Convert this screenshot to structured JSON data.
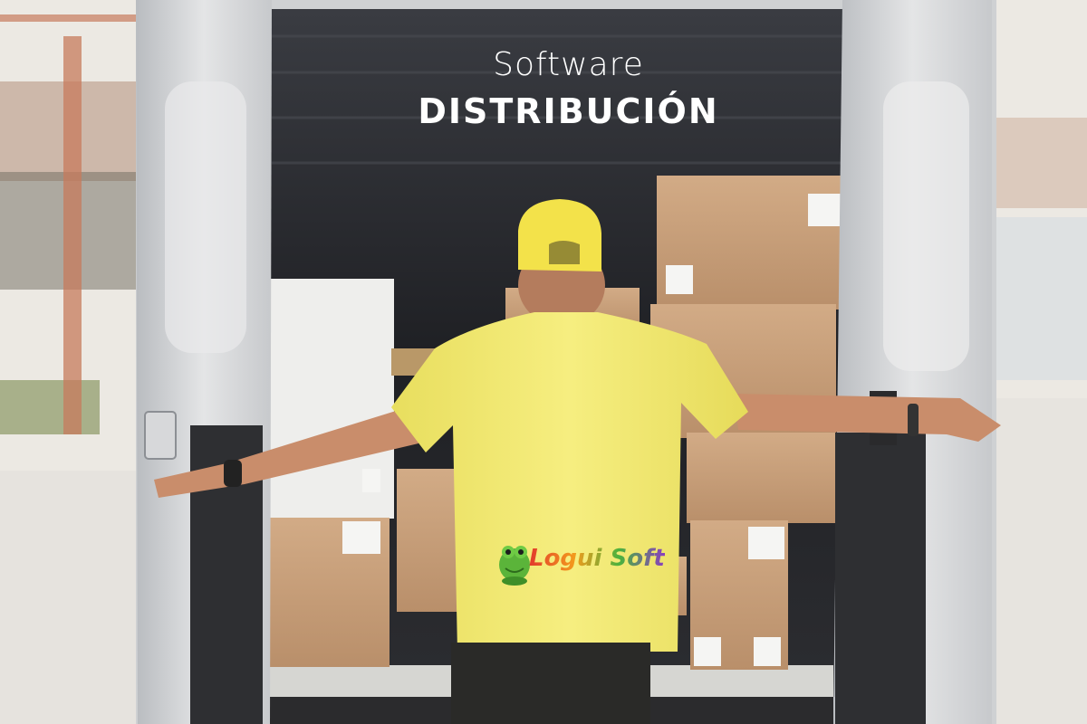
{
  "headline": {
    "line1": "Software",
    "line2": "DISTRIBUCIÓN"
  },
  "logo": {
    "text": "Logui Soft",
    "icon": "frog-mascot-icon"
  },
  "colors": {
    "shirt": "#f2ea70",
    "cap": "#f3e24a",
    "box": "#c9a07a",
    "van_white": "#d9dadb",
    "cargo_dark": "#2a2b2f",
    "text": "#ffffff"
  }
}
